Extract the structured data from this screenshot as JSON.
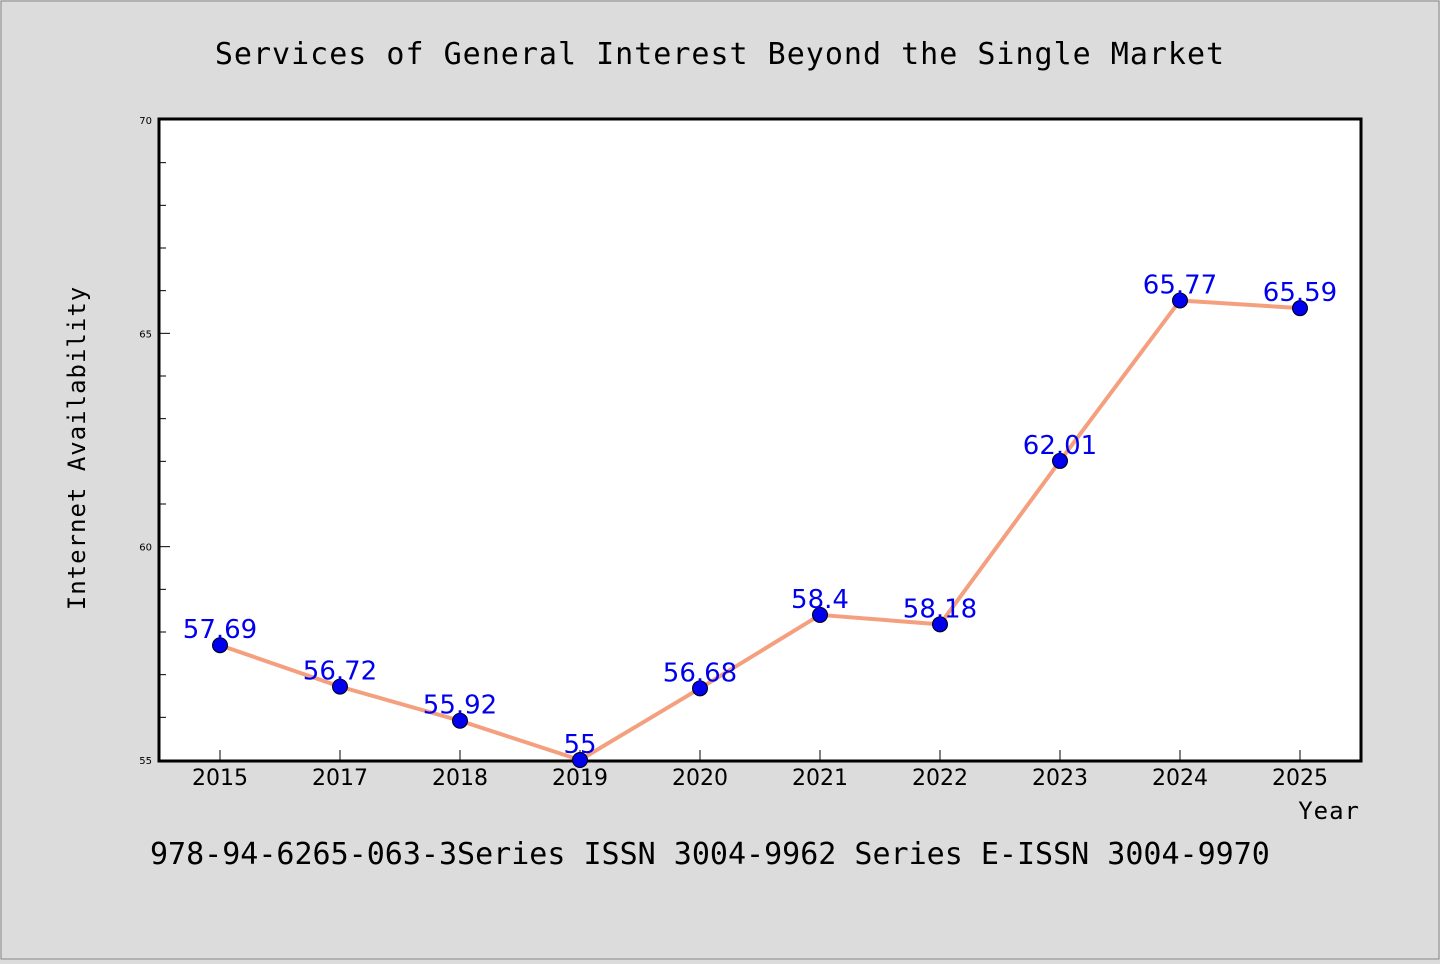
{
  "chart_data": {
    "type": "line",
    "title": "Services of General Interest Beyond the Single Market",
    "xlabel": "Year",
    "ylabel": "Internet Availability",
    "categories": [
      "2015",
      "2017",
      "2018",
      "2019",
      "2020",
      "2021",
      "2022",
      "2023",
      "2024",
      "2025"
    ],
    "values": [
      57.69,
      56.72,
      55.92,
      55,
      56.68,
      58.4,
      58.18,
      62.01,
      65.77,
      65.59
    ],
    "data_labels": [
      "57.69",
      "56.72",
      "55.92",
      "55",
      "56.68",
      "58.4",
      "58.18",
      "62.01",
      "65.77",
      "65.59"
    ],
    "ylim": [
      55,
      70
    ],
    "yticks": [
      "55",
      "60",
      "65",
      "70"
    ],
    "grid": false,
    "line_color": "#f4a07e",
    "marker_color": "#0000ee",
    "label_color": "#0000ee"
  },
  "footer": "978-94-6265-063-3Series ISSN 3004-9962 Series E-ISSN 3004-9970"
}
